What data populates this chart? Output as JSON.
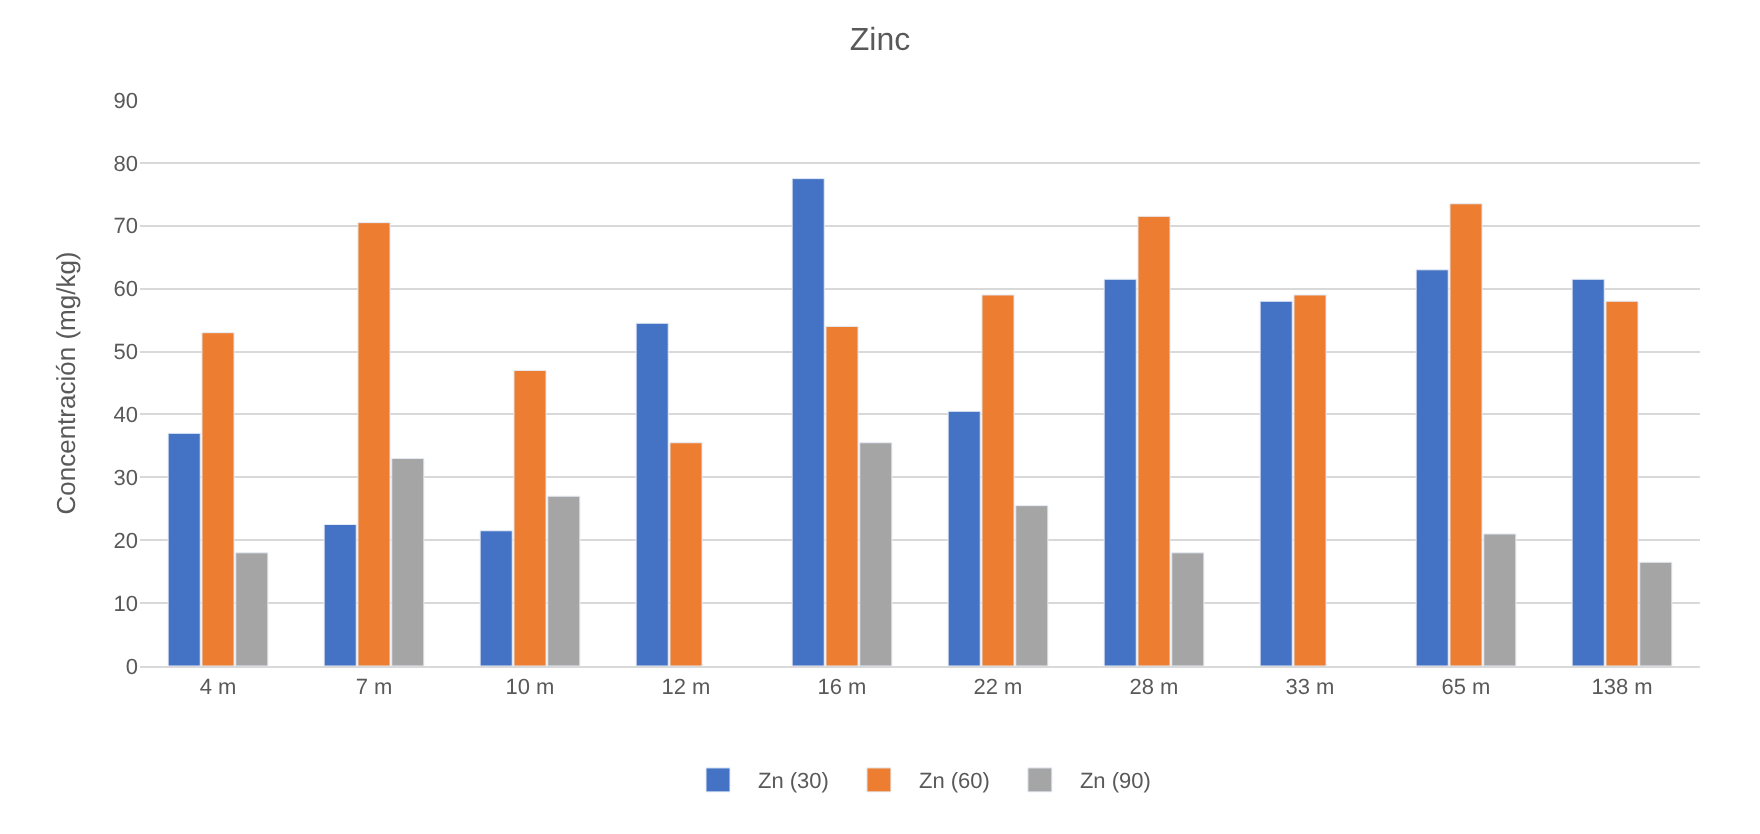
{
  "chart_data": {
    "type": "bar",
    "title": "Zinc",
    "ylabel": "Concentración (mg/kg)",
    "categories": [
      "4 m",
      "7 m",
      "10 m",
      "12 m",
      "16 m",
      "22 m",
      "28 m",
      "33 m",
      "65 m",
      "138 m"
    ],
    "series": [
      {
        "name": "Zn (30)",
        "color": "#4472c4",
        "values": [
          37,
          22.5,
          21.5,
          54.5,
          77.5,
          40.5,
          61.5,
          58,
          63,
          61.5
        ]
      },
      {
        "name": "Zn (60)",
        "color": "#ed7d31",
        "values": [
          53,
          70.5,
          47,
          35.5,
          54,
          59,
          71.5,
          59,
          73.5,
          58
        ]
      },
      {
        "name": "Zn (90)",
        "color": "#a5a5a5",
        "values": [
          18,
          33,
          27,
          null,
          35.5,
          25.5,
          18,
          null,
          21,
          16.5
        ]
      }
    ],
    "ylim": [
      0,
      90
    ],
    "yticks": [
      0,
      10,
      20,
      30,
      40,
      50,
      60,
      70,
      80,
      90
    ],
    "grid": "y",
    "legend": "bottom"
  }
}
